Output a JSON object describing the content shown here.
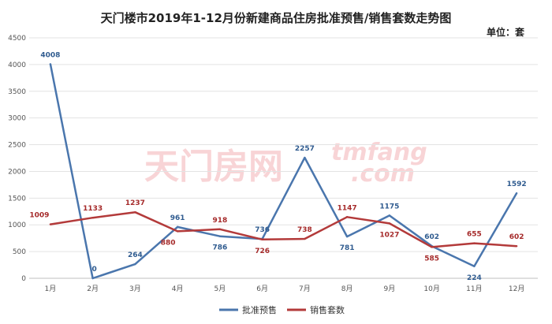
{
  "watermark": {
    "cn": "天门房网",
    "en_top": "tmfang",
    "en_bottom": ".com"
  },
  "chart_data": {
    "type": "line",
    "title": "天门楼市2019年1-12月份新建商品住房批准预售/销售套数走势图",
    "unit_label": "单位：套",
    "categories": [
      "1月",
      "2月",
      "3月",
      "4月",
      "5月",
      "6月",
      "7月",
      "8月",
      "9月",
      "10月",
      "11月",
      "12月"
    ],
    "ylim": [
      0,
      4500
    ],
    "yticks": [
      "0",
      "500",
      "1000",
      "1500",
      "2000",
      "2500",
      "3000",
      "3500",
      "4000",
      "4500"
    ],
    "grid": true,
    "legend_position": "bottom",
    "series": [
      {
        "name": "批准预售",
        "color": "#4a76ad",
        "values": [
          4008,
          0,
          264,
          961,
          786,
          736,
          2257,
          781,
          1175,
          602,
          224,
          1592
        ],
        "labels": [
          "4008",
          "0",
          "264",
          "961",
          "786",
          "736",
          "2257",
          "781",
          "1175",
          "602",
          "224",
          "1592"
        ]
      },
      {
        "name": "销售套数",
        "color": "#b33a3a",
        "values": [
          1009,
          1133,
          1237,
          880,
          918,
          726,
          738,
          1147,
          1027,
          585,
          655,
          602
        ],
        "labels": [
          "1009",
          "1133",
          "1237",
          "880",
          "918",
          "726",
          "738",
          "1147",
          "1027",
          "585",
          "655",
          "602"
        ]
      }
    ]
  }
}
